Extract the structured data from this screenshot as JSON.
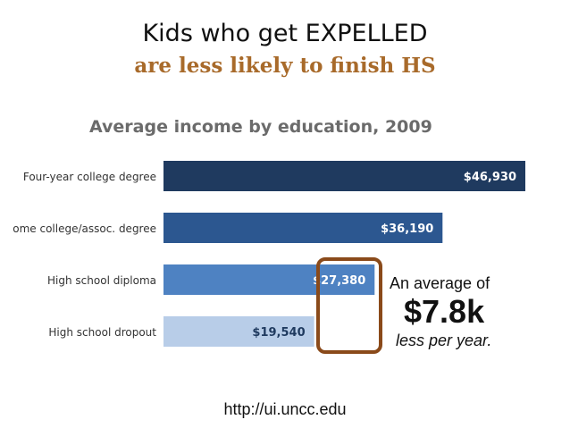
{
  "headline": {
    "line1": "Kids who get EXPELLED",
    "line2": "are less likely to finish HS"
  },
  "chart_data": {
    "type": "bar",
    "orientation": "horizontal",
    "title": "Average income by education, 2009",
    "categories": [
      "Four-year college degree",
      "ome college/assoc. degree",
      "High school diploma",
      "High school dropout"
    ],
    "values": [
      46930,
      36190,
      27380,
      19540
    ],
    "value_labels": [
      "$46,930",
      "$36,190",
      "$27,380",
      "$19,540"
    ],
    "colors": [
      "#1f3a5f",
      "#2c5790",
      "#4e82c2",
      "#b8cde8"
    ],
    "label_colors": [
      "#ffffff",
      "#ffffff",
      "#ffffff",
      "#1f3a5f"
    ],
    "highlight_color": "#8a4a1a",
    "xlim": [
      0,
      46930
    ]
  },
  "callout": {
    "line1": "An average of",
    "amount": "$7.8k",
    "line2": "less per year."
  },
  "source": "http://ui.uncc.edu"
}
